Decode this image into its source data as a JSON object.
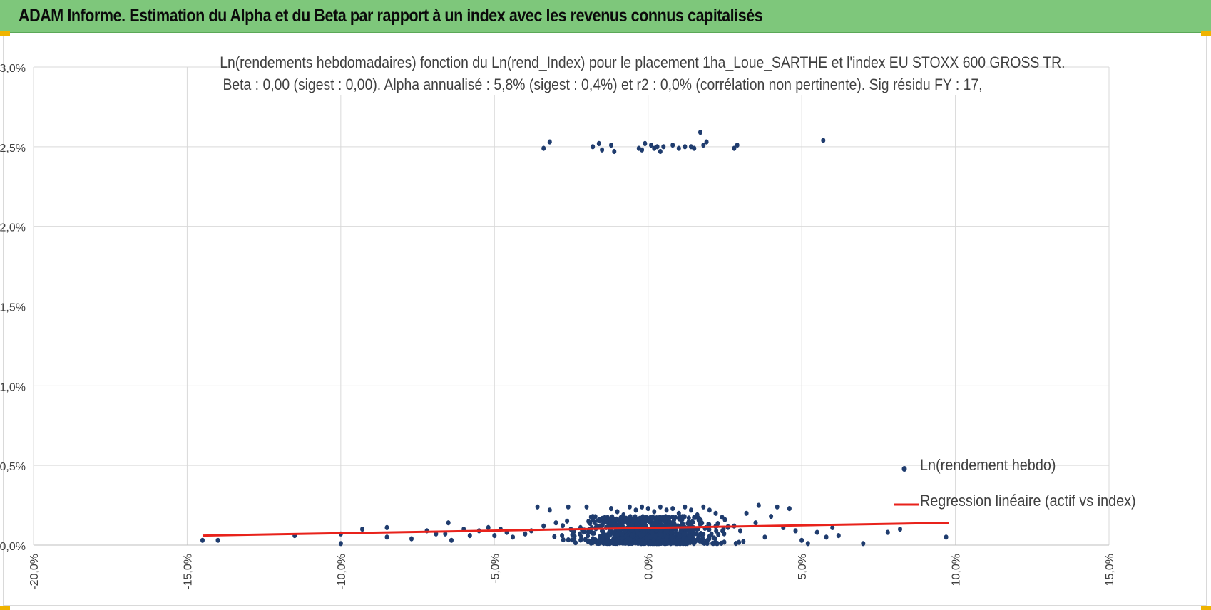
{
  "banner": {
    "title": "ADAM Informe. Estimation du Alpha et du Beta par rapport à un index avec les revenus connus capitalisés",
    "color": "#7ec77b"
  },
  "chart_data": {
    "type": "scatter",
    "title_line1": "Ln(rendements hebdomadaires) fonction du Ln(rend_Index) pour le placement 1ha_Loue_SARTHE et l'index EU STOXX 600 GROSS TR.",
    "title_line2": "Beta : 0,00 (sigest : 0,00). Alpha annualisé : 5,8% (sigest : 0,4%) et r2 : 0,0% (corrélation non pertinente). Sig résidu FY : 17,",
    "xlim": [
      -0.2,
      0.15
    ],
    "ylim": [
      0,
      0.03
    ],
    "x_ticks": [
      "-20,0%",
      "-15,0%",
      "-10,0%",
      "-5,0%",
      "0,0%",
      "5,0%",
      "10,0%",
      "15,0%"
    ],
    "y_ticks": [
      "0,0%",
      "0,5%",
      "1,0%",
      "1,5%",
      "2,0%",
      "2,5%",
      "3,0%"
    ],
    "grid": true,
    "legend_position": "bottom-right",
    "series": [
      {
        "name": "Ln(rendement hebdo)",
        "type": "scatter",
        "color": "#1f3c6e",
        "points": [
          [
            -0.034,
            0.0249
          ],
          [
            -0.032,
            0.0253
          ],
          [
            -0.018,
            0.025
          ],
          [
            -0.016,
            0.0252
          ],
          [
            -0.015,
            0.0248
          ],
          [
            -0.012,
            0.0251
          ],
          [
            -0.011,
            0.0247
          ],
          [
            -0.003,
            0.0249
          ],
          [
            -0.002,
            0.0248
          ],
          [
            -0.001,
            0.0252
          ],
          [
            0.001,
            0.0251
          ],
          [
            0.002,
            0.0249
          ],
          [
            0.003,
            0.025
          ],
          [
            0.004,
            0.0247
          ],
          [
            0.005,
            0.025
          ],
          [
            0.008,
            0.0251
          ],
          [
            0.01,
            0.0249
          ],
          [
            0.012,
            0.025
          ],
          [
            0.014,
            0.025
          ],
          [
            0.015,
            0.0249
          ],
          [
            0.017,
            0.0259
          ],
          [
            0.018,
            0.0251
          ],
          [
            0.019,
            0.0253
          ],
          [
            0.028,
            0.0249
          ],
          [
            0.029,
            0.0251
          ],
          [
            0.057,
            0.0254
          ],
          [
            -0.145,
            0.0003
          ],
          [
            -0.14,
            0.0003
          ],
          [
            -0.115,
            0.0006
          ],
          [
            -0.1,
            0.0007
          ],
          [
            -0.1,
            0.0001
          ],
          [
            -0.093,
            0.001
          ],
          [
            -0.085,
            0.0011
          ],
          [
            -0.085,
            0.0005
          ],
          [
            -0.077,
            0.0004
          ],
          [
            -0.072,
            0.0009
          ],
          [
            -0.069,
            0.0007
          ],
          [
            -0.066,
            0.0007
          ],
          [
            -0.065,
            0.0014
          ],
          [
            -0.064,
            0.0003
          ],
          [
            -0.06,
            0.001
          ],
          [
            -0.058,
            0.0006
          ],
          [
            -0.055,
            0.0009
          ],
          [
            -0.052,
            0.0011
          ],
          [
            -0.05,
            0.0006
          ],
          [
            -0.048,
            0.001
          ],
          [
            -0.046,
            0.0008
          ],
          [
            -0.044,
            0.0005
          ],
          [
            -0.04,
            0.0007
          ],
          [
            -0.038,
            0.0009
          ],
          [
            -0.036,
            0.0024
          ],
          [
            -0.034,
            0.0012
          ],
          [
            -0.032,
            0.0022
          ],
          [
            -0.03,
            0.0014
          ],
          [
            -0.028,
            0.0006
          ],
          [
            -0.026,
            0.0024
          ],
          [
            -0.024,
            0.0004
          ],
          [
            -0.022,
            0.0011
          ],
          [
            -0.02,
            0.0024
          ],
          [
            -0.018,
            0.0018
          ],
          [
            -0.016,
            0.0003
          ],
          [
            -0.012,
            0.0023
          ],
          [
            -0.01,
            0.0021
          ],
          [
            -0.008,
            0.0019
          ],
          [
            -0.006,
            0.0024
          ],
          [
            -0.004,
            0.0022
          ],
          [
            -0.002,
            0.0024
          ],
          [
            0.0,
            0.0023
          ],
          [
            0.002,
            0.0021
          ],
          [
            0.004,
            0.0024
          ],
          [
            0.006,
            0.0022
          ],
          [
            0.008,
            0.0023
          ],
          [
            0.01,
            0.002
          ],
          [
            0.012,
            0.0024
          ],
          [
            0.014,
            0.0022
          ],
          [
            0.016,
            0.0019
          ],
          [
            0.018,
            0.0024
          ],
          [
            0.02,
            0.0022
          ],
          [
            0.022,
            0.002
          ],
          [
            0.025,
            0.0016
          ],
          [
            0.028,
            0.0012
          ],
          [
            0.03,
            0.0009
          ],
          [
            0.032,
            0.002
          ],
          [
            0.035,
            0.0014
          ],
          [
            0.036,
            0.0025
          ],
          [
            0.038,
            0.0005
          ],
          [
            0.04,
            0.0018
          ],
          [
            0.042,
            0.0024
          ],
          [
            0.044,
            0.0011
          ],
          [
            0.046,
            0.0023
          ],
          [
            0.048,
            0.0009
          ],
          [
            0.05,
            0.0003
          ],
          [
            0.052,
            0.0001
          ],
          [
            0.055,
            0.0008
          ],
          [
            0.058,
            0.0005
          ],
          [
            0.06,
            0.0011
          ],
          [
            0.062,
            0.0006
          ],
          [
            0.07,
            0.0001
          ],
          [
            0.078,
            0.0008
          ],
          [
            0.082,
            0.001
          ],
          [
            0.097,
            0.0005
          ]
        ]
      },
      {
        "name": "Regression linéaire (actif vs index)",
        "type": "line",
        "color": "#e8221b",
        "points": [
          [
            -0.145,
            0.0006
          ],
          [
            0.098,
            0.0014
          ]
        ]
      }
    ],
    "cluster": {
      "center_x": 0.0,
      "spread_x": 0.014,
      "y_min": 0.0001,
      "y_max": 0.0018,
      "count": 900
    }
  }
}
